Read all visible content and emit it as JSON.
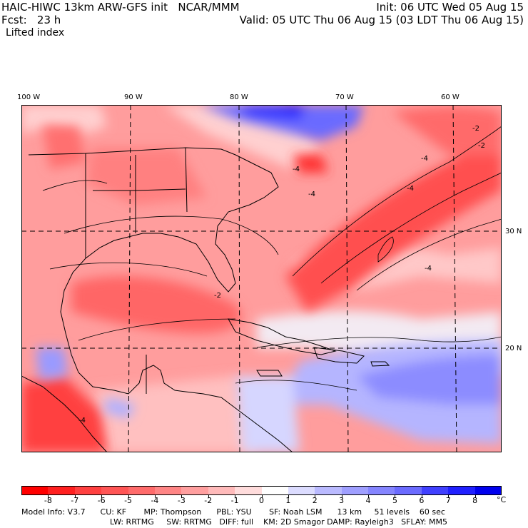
{
  "header": {
    "title_left": "HAIC-HIWC 13km ARW-GFS init   NCAR/MMM",
    "init": "Init: 06 UTC Wed 05 Aug 15",
    "fcst": "Fcst:   23 h",
    "valid": "Valid: 05 UTC Thu 06 Aug 15 (03 LDT Thu 06 Aug 15)",
    "field": "Lifted index"
  },
  "map": {
    "lon_labels": [
      "100 W",
      "90 W",
      "80 W",
      "70 W",
      "60 W"
    ],
    "lat_labels": [
      "30 N",
      "20 N"
    ],
    "contour_labels": [
      "-2",
      "-2",
      "-4",
      "-4",
      "-4",
      "-4",
      "-4",
      "-2",
      "-4"
    ]
  },
  "colorbar": {
    "labels": [
      "-8",
      "-7",
      "-6",
      "-5",
      "-4",
      "-3",
      "-2",
      "-1",
      "0",
      "1",
      "2",
      "3",
      "4",
      "5",
      "6",
      "7",
      "8"
    ],
    "unit": "°C",
    "colors": [
      "#ff0000",
      "#ff2020",
      "#ff4040",
      "#ff5555",
      "#ff6b6b",
      "#ff8585",
      "#ff9f9f",
      "#ffbaba",
      "#ffdcdc",
      "#ffffff",
      "#dcdcff",
      "#babaff",
      "#9f9fff",
      "#8585ff",
      "#6b6bff",
      "#4040ff",
      "#2020ff",
      "#0000ee"
    ]
  },
  "footer": {
    "line1": "Model Info: V3.7      CU: KF       MP: Thompson      PBL: YSU       SF: Noah LSM      13 km     51 levels    60 sec",
    "line2": "LW: RRTMG     SW: RRTMG   DIFF: full    KM: 2D Smagor DAMP: Rayleigh3   SFLAY: MM5"
  }
}
